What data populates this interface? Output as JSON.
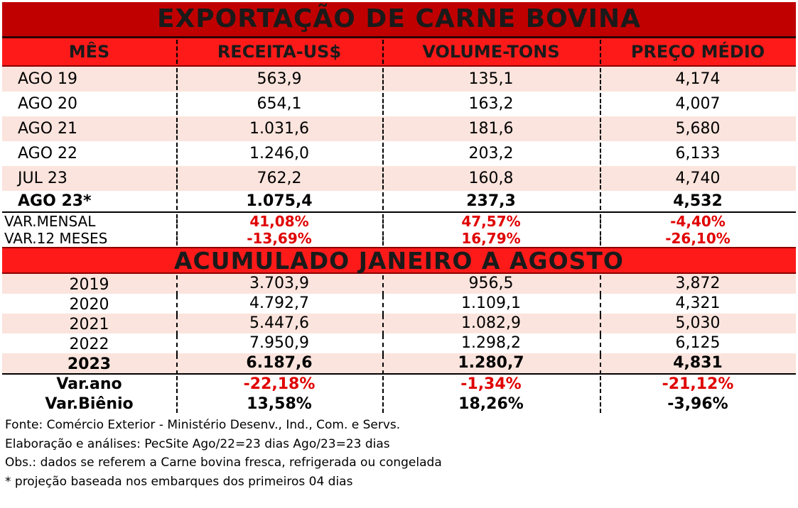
{
  "title": "EXPORTAÇÃO DE CARNE BOVINA",
  "headers": [
    "MÊS",
    "RECEITA-US$",
    "VOLUME-TONS",
    "PREÇO MÉDIO"
  ],
  "monthly": [
    {
      "label": "AGO 19",
      "receita": "563,9",
      "volume": "135,1",
      "preco": "4,174"
    },
    {
      "label": "AGO 20",
      "receita": "654,1",
      "volume": "163,2",
      "preco": "4,007"
    },
    {
      "label": "AGO 21",
      "receita": "1.031,6",
      "volume": "181,6",
      "preco": "5,680"
    },
    {
      "label": "AGO 22",
      "receita": "1.246,0",
      "volume": "203,2",
      "preco": "6,133"
    },
    {
      "label": "JUL 23",
      "receita": "762,2",
      "volume": "160,8",
      "preco": "4,740"
    },
    {
      "label": "AGO 23*",
      "receita": "1.075,4",
      "volume": "237,3",
      "preco": "4,532"
    }
  ],
  "variations": [
    {
      "label": "VAR.MENSAL",
      "receita": "41,08%",
      "volume": "47,57%",
      "preco": "-4,40%"
    },
    {
      "label": "VAR.12 MESES",
      "receita": "-13,69%",
      "volume": "16,79%",
      "preco": "-26,10%"
    }
  ],
  "section_title": "ACUMULADO JANEIRO A AGOSTO",
  "yearly": [
    {
      "label": "2019",
      "receita": "3.703,9",
      "volume": "956,5",
      "preco": "3,872"
    },
    {
      "label": "2020",
      "receita": "4.792,7",
      "volume": "1.109,1",
      "preco": "4,321"
    },
    {
      "label": "2021",
      "receita": "5.447,6",
      "volume": "1.082,9",
      "preco": "5,030"
    },
    {
      "label": "2022",
      "receita": "7.950,9",
      "volume": "1.298,2",
      "preco": "6,125"
    },
    {
      "label": "2023",
      "receita": "6.187,6",
      "volume": "1.280,7",
      "preco": "4,831"
    }
  ],
  "summary": [
    {
      "label": "Var.ano",
      "receita": "-22,18%",
      "volume": "-1,34%",
      "preco": "-21,12%"
    },
    {
      "label": "Var.Biênio",
      "receita": "13,58%",
      "volume": "18,26%",
      "preco": "-3,96%"
    }
  ],
  "notes": [
    "Fonte: Comércio Exterior - Ministério Desenv., Ind., Com. e Servs.",
    "Elaboração e análises: PecSite      Ago/22=23 dias    Ago/23=23 dias",
    "Obs.: dados se referem a Carne bovina fresca, refrigerada ou congelada",
    "* projeção baseada nos embarques dos primeiros 04 dias"
  ],
  "colors": {
    "title_bg": "#c00000",
    "header_bg": "#ff1a1a",
    "row_alt": "#fbe4dd",
    "negative": "#e00000"
  }
}
